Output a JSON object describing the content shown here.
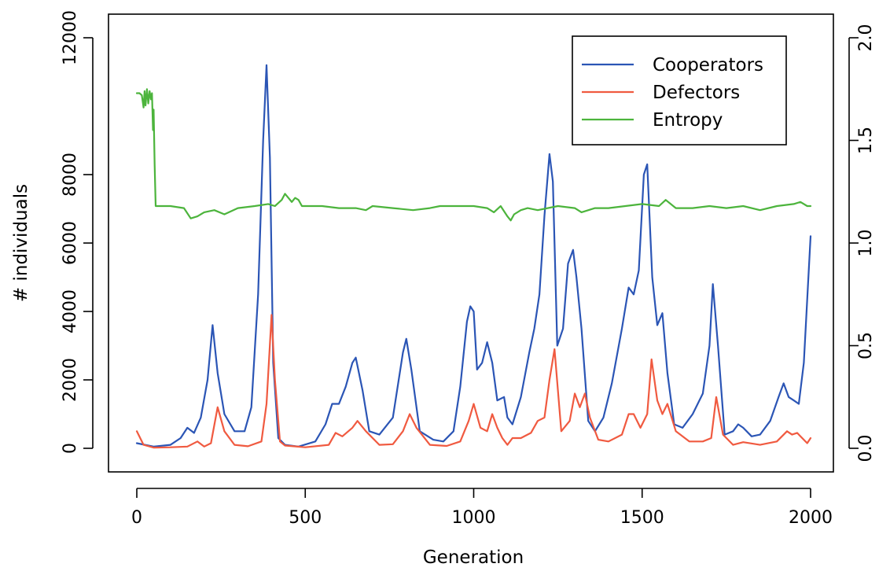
{
  "chart_data": {
    "type": "line",
    "title": "",
    "xlabel": "Generation",
    "ylabel": "# individuals",
    "y2label": "",
    "xlim": [
      0,
      2000
    ],
    "ylim": [
      0,
      12000
    ],
    "y2lim": [
      0,
      2.0
    ],
    "x_ticks": [
      0,
      500,
      1000,
      1500,
      2000
    ],
    "y_ticks": [
      0,
      2000,
      4000,
      6000,
      8000,
      12000
    ],
    "y2_ticks": [
      0.0,
      0.5,
      1.0,
      1.5,
      2.0
    ],
    "x_tick_labels": [
      "0",
      "500",
      "1000",
      "1500",
      "2000"
    ],
    "y_tick_labels": [
      "0",
      "2000",
      "4000",
      "6000",
      "8000",
      "12000"
    ],
    "y2_tick_labels": [
      "0.0",
      "0.5",
      "1.0",
      "1.5",
      "2.0"
    ],
    "grid": false,
    "legend_position": "top-right",
    "series": [
      {
        "name": "Cooperators",
        "color": "#2b55b5",
        "axis": "left",
        "x": [
          0,
          50,
          100,
          130,
          150,
          170,
          190,
          210,
          225,
          240,
          260,
          290,
          320,
          340,
          360,
          375,
          385,
          395,
          405,
          420,
          440,
          480,
          530,
          560,
          580,
          600,
          620,
          640,
          650,
          670,
          690,
          720,
          760,
          790,
          800,
          815,
          840,
          880,
          910,
          940,
          960,
          980,
          990,
          1000,
          1010,
          1025,
          1040,
          1055,
          1070,
          1090,
          1100,
          1115,
          1140,
          1165,
          1180,
          1195,
          1210,
          1225,
          1235,
          1248,
          1265,
          1280,
          1295,
          1305,
          1320,
          1340,
          1360,
          1385,
          1410,
          1440,
          1460,
          1475,
          1490,
          1505,
          1515,
          1530,
          1545,
          1560,
          1575,
          1595,
          1620,
          1650,
          1680,
          1700,
          1710,
          1725,
          1745,
          1770,
          1785,
          1800,
          1825,
          1850,
          1880,
          1905,
          1920,
          1935,
          1950,
          1965,
          1980,
          2000
        ],
        "values": [
          150,
          50,
          100,
          300,
          600,
          450,
          900,
          2000,
          3600,
          2200,
          1000,
          500,
          500,
          1200,
          4500,
          9000,
          11200,
          8500,
          2500,
          300,
          100,
          50,
          200,
          700,
          1300,
          1300,
          1800,
          2500,
          2650,
          1700,
          500,
          400,
          900,
          2800,
          3200,
          2300,
          500,
          250,
          200,
          500,
          1800,
          3700,
          4150,
          4000,
          2300,
          2500,
          3100,
          2500,
          1400,
          1500,
          900,
          700,
          1500,
          2800,
          3500,
          4500,
          6800,
          8600,
          7800,
          3000,
          3500,
          5400,
          5800,
          5000,
          3500,
          800,
          500,
          900,
          1900,
          3500,
          4700,
          4500,
          5200,
          8000,
          8300,
          5000,
          3600,
          3950,
          2200,
          700,
          600,
          1000,
          1600,
          3000,
          4800,
          3000,
          400,
          500,
          700,
          600,
          350,
          400,
          800,
          1500,
          1900,
          1500,
          1400,
          1300,
          2500,
          6200
        ]
      },
      {
        "name": "Defectors",
        "color": "#f05a40",
        "axis": "left",
        "x": [
          0,
          20,
          50,
          100,
          150,
          180,
          200,
          220,
          240,
          260,
          290,
          330,
          370,
          385,
          400,
          410,
          425,
          440,
          500,
          570,
          590,
          610,
          640,
          655,
          680,
          720,
          760,
          790,
          810,
          830,
          870,
          920,
          960,
          985,
          1000,
          1020,
          1040,
          1055,
          1070,
          1085,
          1100,
          1115,
          1140,
          1170,
          1190,
          1210,
          1225,
          1240,
          1260,
          1285,
          1300,
          1315,
          1330,
          1345,
          1370,
          1400,
          1440,
          1460,
          1475,
          1495,
          1515,
          1528,
          1545,
          1560,
          1575,
          1600,
          1640,
          1680,
          1705,
          1720,
          1740,
          1770,
          1800,
          1850,
          1900,
          1930,
          1945,
          1960,
          1990,
          2000
        ],
        "values": [
          500,
          100,
          20,
          30,
          50,
          200,
          50,
          150,
          1200,
          500,
          100,
          60,
          200,
          1300,
          3900,
          2000,
          200,
          80,
          30,
          100,
          450,
          350,
          600,
          800,
          500,
          100,
          120,
          500,
          1000,
          600,
          100,
          70,
          200,
          800,
          1300,
          600,
          500,
          1000,
          600,
          300,
          100,
          300,
          300,
          450,
          800,
          900,
          2000,
          2900,
          500,
          800,
          1600,
          1200,
          1600,
          900,
          250,
          200,
          400,
          1000,
          1000,
          600,
          1000,
          2600,
          1400,
          1000,
          1300,
          500,
          200,
          200,
          300,
          1500,
          400,
          100,
          180,
          100,
          200,
          500,
          400,
          450,
          150,
          300
        ]
      },
      {
        "name": "Entropy",
        "color": "#4cb43c",
        "axis": "right",
        "x": [
          0,
          8,
          15,
          20,
          23,
          26,
          30,
          34,
          38,
          42,
          45,
          48,
          50,
          53,
          56,
          60,
          100,
          140,
          160,
          180,
          200,
          230,
          260,
          300,
          350,
          390,
          410,
          430,
          440,
          450,
          460,
          470,
          480,
          490,
          500,
          550,
          600,
          650,
          680,
          700,
          760,
          820,
          870,
          900,
          950,
          1000,
          1040,
          1060,
          1080,
          1100,
          1110,
          1120,
          1140,
          1160,
          1190,
          1250,
          1300,
          1320,
          1360,
          1400,
          1450,
          1500,
          1550,
          1570,
          1600,
          1650,
          1700,
          1750,
          1800,
          1850,
          1900,
          1950,
          1970,
          1990,
          2000
        ],
        "values": [
          1.73,
          1.73,
          1.72,
          1.66,
          1.74,
          1.67,
          1.75,
          1.68,
          1.74,
          1.7,
          1.73,
          1.55,
          1.65,
          1.38,
          1.18,
          1.18,
          1.18,
          1.17,
          1.12,
          1.13,
          1.15,
          1.16,
          1.14,
          1.17,
          1.18,
          1.19,
          1.18,
          1.21,
          1.24,
          1.22,
          1.2,
          1.22,
          1.21,
          1.18,
          1.18,
          1.18,
          1.17,
          1.17,
          1.16,
          1.18,
          1.17,
          1.16,
          1.17,
          1.18,
          1.18,
          1.18,
          1.17,
          1.15,
          1.18,
          1.13,
          1.11,
          1.14,
          1.16,
          1.17,
          1.16,
          1.18,
          1.17,
          1.15,
          1.17,
          1.17,
          1.18,
          1.19,
          1.18,
          1.21,
          1.17,
          1.17,
          1.18,
          1.17,
          1.18,
          1.16,
          1.18,
          1.19,
          1.2,
          1.18,
          1.18
        ]
      }
    ]
  }
}
